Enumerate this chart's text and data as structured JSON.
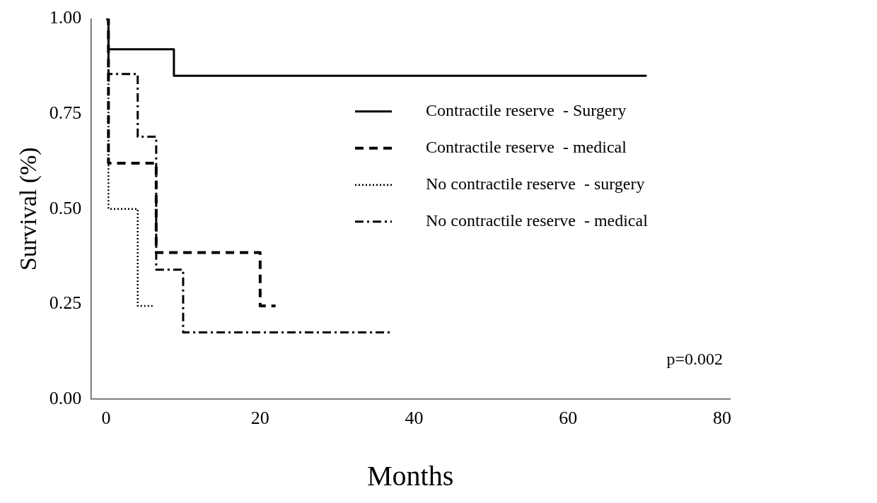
{
  "chart_data": {
    "type": "step",
    "xlabel": "Months",
    "ylabel": "Survival (%)",
    "xlim": [
      -2,
      81
    ],
    "xticks": [
      0,
      20,
      40,
      60,
      80
    ],
    "ylim": [
      0,
      1
    ],
    "yticks": [
      {
        "value": 0,
        "label": "0.00"
      },
      {
        "value": 0.25,
        "label": "0.25"
      },
      {
        "value": 0.5,
        "label": "0.50"
      },
      {
        "value": 0.75,
        "label": "0.75"
      },
      {
        "value": 1,
        "label": "1.00"
      }
    ],
    "grid": false,
    "legend": "right",
    "annotations": [
      "p=0.002"
    ],
    "series": [
      {
        "name": "Contractile reserve  - Surgery",
        "color": "#000000",
        "line_style": "solid",
        "x": [
          0,
          0.3,
          8.8,
          70.2
        ],
        "values": [
          1,
          0.92,
          0.85,
          0.85
        ]
      },
      {
        "name": "Contractile reserve  - medical",
        "color": "#000000",
        "line_style": "dashed",
        "x": [
          0,
          0.3,
          6.5,
          20,
          22
        ],
        "values": [
          1,
          0.62,
          0.385,
          0.245,
          0.245
        ]
      },
      {
        "name": "No contractile reserve  - surgery",
        "color": "#000000",
        "line_style": "dotted",
        "x": [
          0,
          0.3,
          4.1,
          6.2
        ],
        "values": [
          1,
          0.5,
          0.245,
          0.245
        ]
      },
      {
        "name": "No contractile reserve  - medical",
        "color": "#000000",
        "line_style": "dashdot",
        "x": [
          0,
          0.3,
          4.1,
          6.5,
          10,
          37
        ],
        "values": [
          1,
          0.855,
          0.69,
          0.34,
          0.175,
          0.175
        ]
      }
    ]
  }
}
